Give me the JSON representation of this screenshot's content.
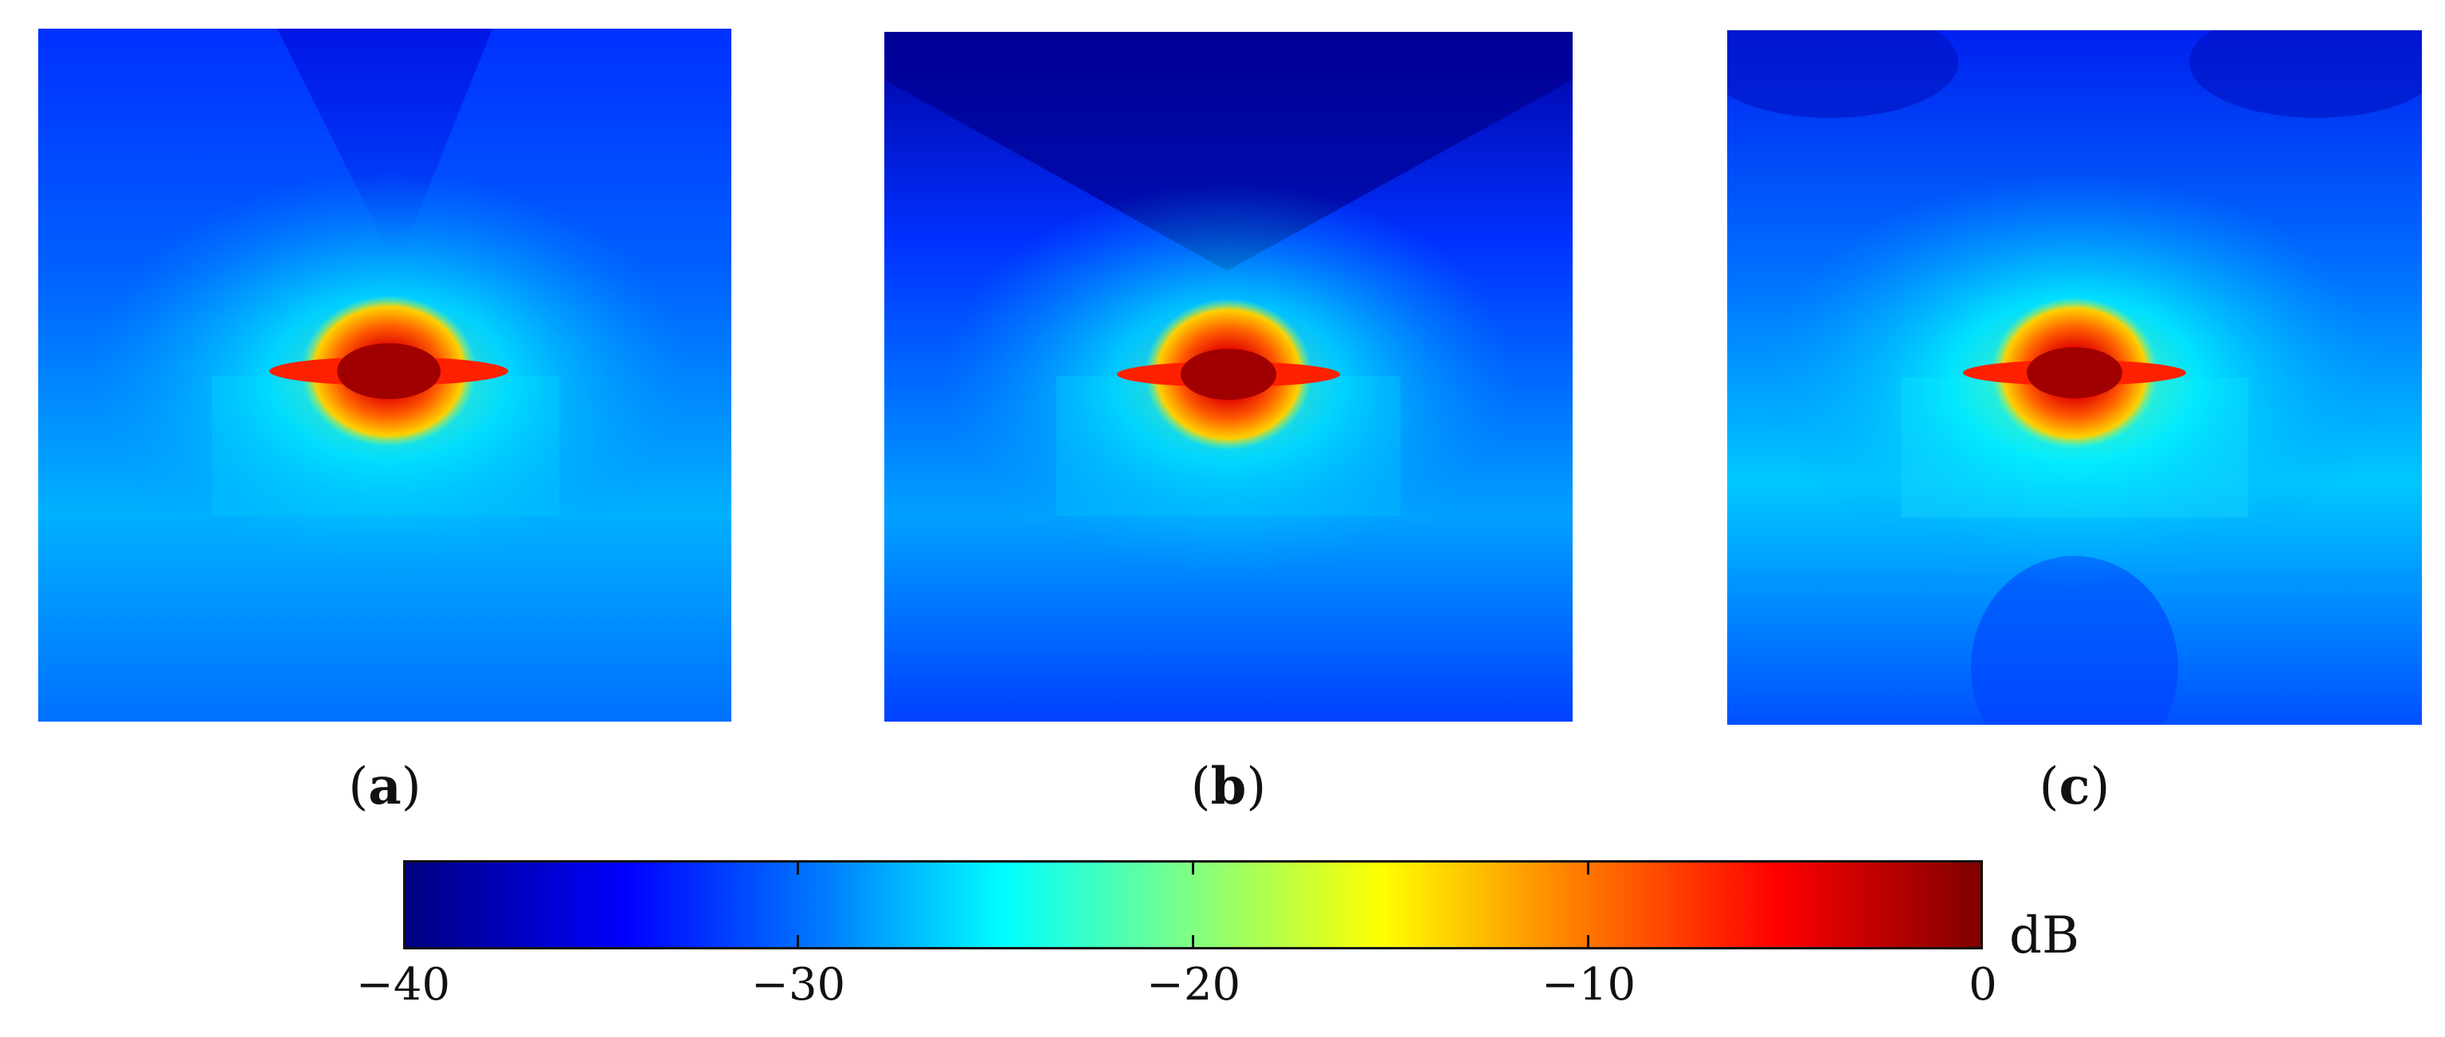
{
  "panels": [
    {
      "id": "a",
      "caption": "a"
    },
    {
      "id": "b",
      "caption": "b"
    },
    {
      "id": "c",
      "caption": "c"
    }
  ],
  "colorbar": {
    "unit": "dB",
    "min": -40,
    "max": 0,
    "ticks": [
      "−40",
      "−30",
      "−20",
      "−10",
      "0"
    ],
    "colormap": "jet"
  },
  "colors": {
    "dark_blue": "#00007f",
    "blue": "#0020ff",
    "cyan": "#00ffff",
    "yellow": "#ffff00",
    "red": "#ff0000",
    "dark_red": "#7f0000"
  }
}
